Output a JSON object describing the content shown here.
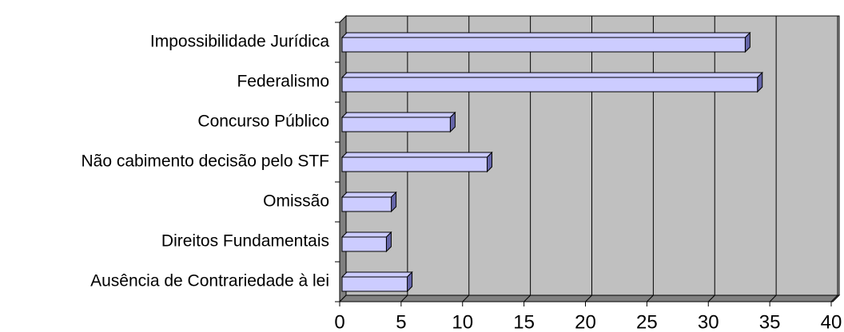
{
  "chart_data": {
    "type": "bar",
    "orientation": "horizontal",
    "categories": [
      "Impossibilidade Jurídica",
      "Federalismo",
      "Concurso Público",
      "Não cabimento decisão pelo STF",
      "Omissão",
      "Direitos Fundamentais",
      "Ausência de Contrariedade à lei"
    ],
    "values": [
      33,
      34,
      9,
      12,
      4.2,
      3.8,
      5.5
    ],
    "color": "#ccccff",
    "xlim": [
      0,
      40
    ],
    "xticks": [
      0,
      5,
      10,
      15,
      20,
      25,
      30,
      35,
      40
    ],
    "grid": true
  }
}
